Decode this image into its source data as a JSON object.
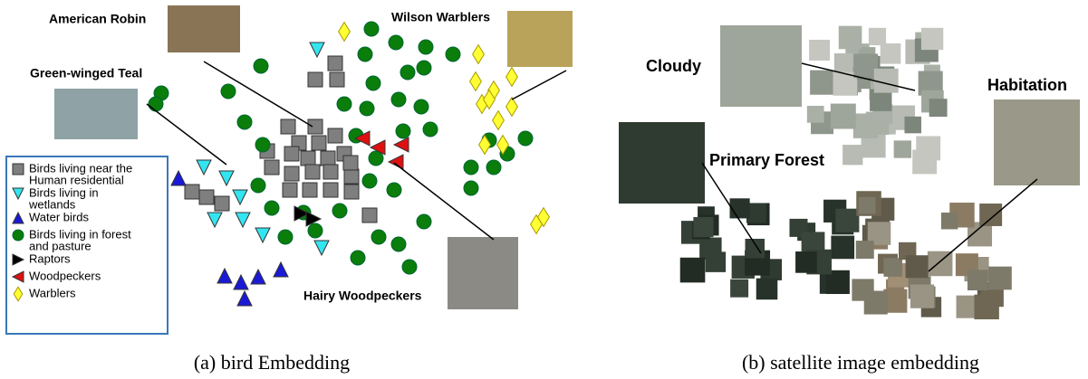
{
  "bird_panel": {
    "labels": [
      "American Robin",
      "Wilson Warblers",
      "Green-winged Teal",
      "Hairy Woodpeckers"
    ],
    "legend": [
      [
        "Birds living near the",
        "Human residential"
      ],
      [
        "Birds living in",
        "wetlands"
      ],
      [
        "Water birds"
      ],
      [
        "Birds living in forest",
        "and pasture"
      ],
      [
        "Raptors"
      ],
      [
        "Woodpeckers"
      ],
      [
        "Warblers"
      ]
    ],
    "caption": "(a) bird Embedding"
  },
  "satellite_panel": {
    "labels": [
      "Cloudy",
      "Habitation",
      "Primary Forest"
    ],
    "caption": "(b) satellite image embedding"
  }
}
